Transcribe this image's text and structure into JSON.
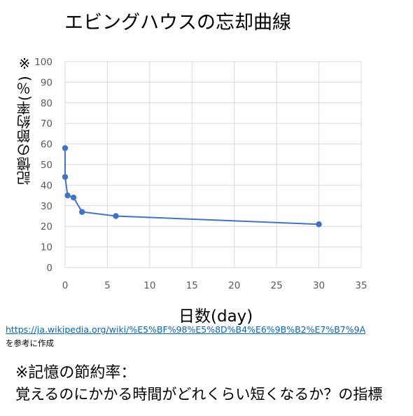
{
  "chart_data": {
    "type": "scatter",
    "title": "エビングハウスの忘却曲線",
    "xlabel": "日数(day)",
    "ylabel": "記憶の節約率(％) ※",
    "xlim": [
      0,
      35
    ],
    "ylim": [
      0,
      100
    ],
    "x_ticks": [
      "0",
      "5",
      "10",
      "15",
      "20",
      "25",
      "30",
      "35"
    ],
    "y_ticks": [
      "0",
      "10",
      "20",
      "30",
      "40",
      "50",
      "60",
      "70",
      "80",
      "90",
      "100"
    ],
    "grid": true,
    "legend": "none",
    "series": [
      {
        "x": [
          0,
          0,
          0.3,
          1,
          2,
          6,
          30
        ],
        "y": [
          58,
          44,
          35,
          34,
          27,
          25,
          21
        ],
        "color": "#4472c4",
        "lines": true,
        "markers": true
      }
    ]
  },
  "source": {
    "link": "https://ja.wikipedia.org/wiki/%E5%BF%98%E5%8D%B4%E6%9B%B2%E7%B7%9A",
    "note": "を参考に作成"
  },
  "footnote": {
    "line1": "※記憶の節約率：",
    "line2": "覚えるのにかかる時間がどれくらい短くなるか？の指標"
  },
  "colors": {
    "series": "#4472c4",
    "grid": "#d9d9d9",
    "tick_text": "#595959",
    "link": "#0563c1"
  }
}
